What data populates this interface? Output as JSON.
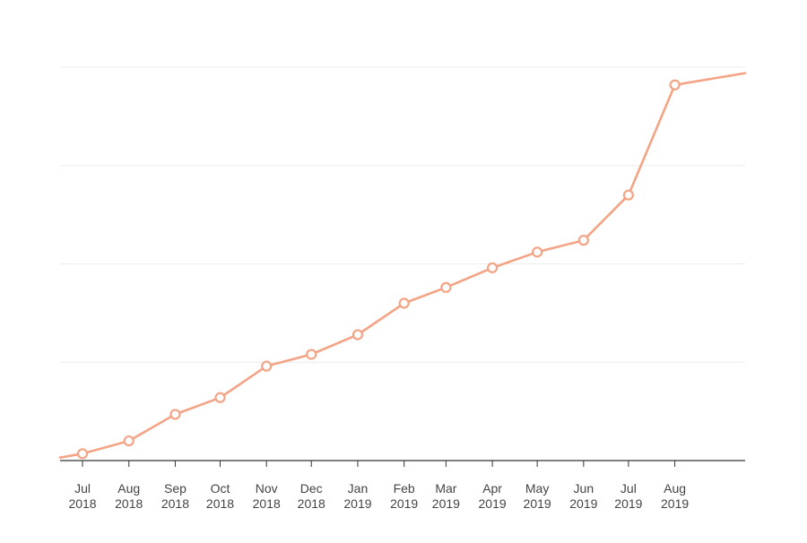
{
  "chart_data": {
    "type": "line",
    "title": "",
    "xlabel": "",
    "ylabel": "",
    "x_tick_labels": [
      {
        "month": "Jul",
        "year": "2018"
      },
      {
        "month": "Aug",
        "year": "2018"
      },
      {
        "month": "Sep",
        "year": "2018"
      },
      {
        "month": "Oct",
        "year": "2018"
      },
      {
        "month": "Nov",
        "year": "2018"
      },
      {
        "month": "Dec",
        "year": "2018"
      },
      {
        "month": "Jan",
        "year": "2019"
      },
      {
        "month": "Feb",
        "year": "2019"
      },
      {
        "month": "Mar",
        "year": "2019"
      },
      {
        "month": "Apr",
        "year": "2019"
      },
      {
        "month": "May",
        "year": "2019"
      },
      {
        "month": "Jun",
        "year": "2019"
      },
      {
        "month": "Jul",
        "year": "2019"
      },
      {
        "month": "Aug",
        "year": "2019"
      }
    ],
    "x_range": [
      "2018-06-16",
      "2019-09-17"
    ],
    "y_range": [
      0,
      4
    ],
    "y_gridlines": [
      1,
      2,
      3,
      4
    ],
    "y_tick_labels_visible": false,
    "grid": true,
    "legend": "none",
    "color": "#f4a385",
    "series": [
      {
        "points": [
          {
            "x": "2018-06-16",
            "y": 0.03
          },
          {
            "x": "2018-07-01",
            "y": 0.07
          },
          {
            "x": "2018-08-01",
            "y": 0.2
          },
          {
            "x": "2018-09-01",
            "y": 0.47
          },
          {
            "x": "2018-10-01",
            "y": 0.64
          },
          {
            "x": "2018-11-01",
            "y": 0.96
          },
          {
            "x": "2018-12-01",
            "y": 1.08
          },
          {
            "x": "2019-01-01",
            "y": 1.28
          },
          {
            "x": "2019-02-01",
            "y": 1.6
          },
          {
            "x": "2019-03-01",
            "y": 1.76
          },
          {
            "x": "2019-04-01",
            "y": 1.96
          },
          {
            "x": "2019-05-01",
            "y": 2.12
          },
          {
            "x": "2019-06-01",
            "y": 2.24
          },
          {
            "x": "2019-07-01",
            "y": 2.7
          },
          {
            "x": "2019-08-01",
            "y": 3.82
          },
          {
            "x": "2019-09-17",
            "y": 3.94
          }
        ],
        "marked_dates": [
          "2018-07-01",
          "2018-08-01",
          "2018-09-01",
          "2018-10-01",
          "2018-11-01",
          "2018-12-01",
          "2019-01-01",
          "2019-02-01",
          "2019-03-01",
          "2019-04-01",
          "2019-05-01",
          "2019-06-01",
          "2019-07-01",
          "2019-08-01"
        ]
      }
    ]
  }
}
